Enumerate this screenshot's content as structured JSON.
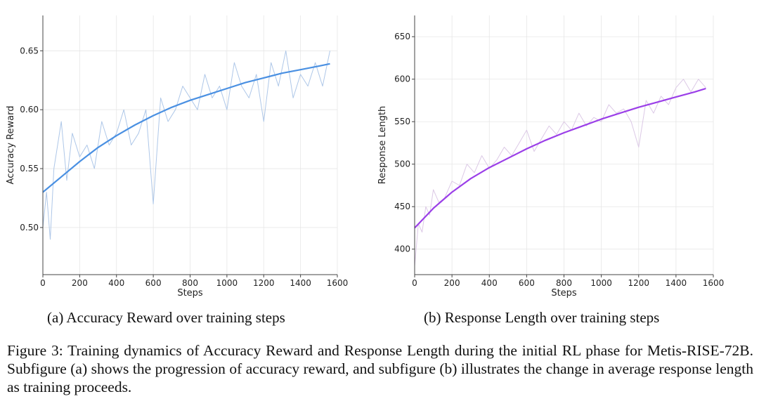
{
  "chart_data": [
    {
      "type": "line",
      "xlabel": "Steps",
      "ylabel": "Accuracy Reward",
      "xlim": [
        0,
        1600
      ],
      "ylim": [
        0.46,
        0.68
      ],
      "xticks": [
        0,
        200,
        400,
        600,
        800,
        1000,
        1200,
        1400,
        1600
      ],
      "yticks": [
        0.5,
        0.55,
        0.6,
        0.65
      ],
      "ytick_labels": [
        "0.50",
        "0.55",
        "0.60",
        "0.65"
      ],
      "grid": true,
      "series": [
        {
          "style": "raw",
          "color": "#aec7e8",
          "x": [
            0,
            20,
            40,
            60,
            80,
            100,
            130,
            160,
            200,
            240,
            280,
            320,
            360,
            400,
            440,
            480,
            520,
            560,
            600,
            640,
            680,
            720,
            760,
            800,
            840,
            880,
            920,
            960,
            1000,
            1040,
            1080,
            1120,
            1160,
            1200,
            1240,
            1280,
            1320,
            1360,
            1400,
            1440,
            1480,
            1520,
            1560
          ],
          "y": [
            0.5,
            0.53,
            0.49,
            0.55,
            0.57,
            0.59,
            0.54,
            0.58,
            0.56,
            0.57,
            0.55,
            0.59,
            0.57,
            0.58,
            0.6,
            0.57,
            0.58,
            0.6,
            0.52,
            0.61,
            0.59,
            0.6,
            0.62,
            0.61,
            0.6,
            0.63,
            0.61,
            0.62,
            0.6,
            0.64,
            0.62,
            0.61,
            0.63,
            0.59,
            0.64,
            0.62,
            0.65,
            0.61,
            0.63,
            0.62,
            0.64,
            0.62,
            0.65
          ]
        },
        {
          "style": "trend",
          "color": "#4a90e2",
          "x": [
            0,
            100,
            200,
            300,
            400,
            500,
            600,
            700,
            800,
            900,
            1000,
            1100,
            1200,
            1300,
            1400,
            1500,
            1560
          ],
          "y": [
            0.53,
            0.543,
            0.556,
            0.568,
            0.578,
            0.587,
            0.595,
            0.602,
            0.608,
            0.613,
            0.618,
            0.623,
            0.627,
            0.631,
            0.634,
            0.637,
            0.639
          ]
        }
      ]
    },
    {
      "type": "line",
      "xlabel": "Steps",
      "ylabel": "Response Length",
      "xlim": [
        0,
        1600
      ],
      "ylim": [
        370,
        675
      ],
      "xticks": [
        0,
        200,
        400,
        600,
        800,
        1000,
        1200,
        1400,
        1600
      ],
      "yticks": [
        400,
        450,
        500,
        550,
        600,
        650
      ],
      "ytick_labels": [
        "400",
        "450",
        "500",
        "550",
        "600",
        "650"
      ],
      "grid": true,
      "series": [
        {
          "style": "raw",
          "color": "#dcc9e6",
          "x": [
            0,
            20,
            40,
            60,
            80,
            100,
            130,
            160,
            200,
            240,
            280,
            320,
            360,
            400,
            440,
            480,
            520,
            560,
            600,
            640,
            680,
            720,
            760,
            800,
            840,
            880,
            920,
            960,
            1000,
            1040,
            1080,
            1120,
            1160,
            1200,
            1240,
            1280,
            1320,
            1360,
            1400,
            1440,
            1480,
            1520,
            1560
          ],
          "y": [
            380,
            430,
            420,
            450,
            440,
            470,
            455,
            460,
            480,
            475,
            500,
            490,
            510,
            495,
            505,
            520,
            510,
            525,
            540,
            515,
            530,
            545,
            535,
            550,
            540,
            560,
            545,
            555,
            550,
            570,
            560,
            565,
            550,
            520,
            575,
            560,
            580,
            570,
            590,
            600,
            585,
            600,
            590
          ]
        },
        {
          "style": "trend",
          "color": "#9b3fe8",
          "x": [
            0,
            100,
            200,
            300,
            400,
            500,
            600,
            700,
            800,
            900,
            1000,
            1100,
            1200,
            1300,
            1400,
            1500,
            1560
          ],
          "y": [
            425,
            448,
            467,
            483,
            496,
            507,
            518,
            528,
            537,
            545,
            553,
            560,
            567,
            573,
            579,
            585,
            589
          ]
        }
      ]
    }
  ],
  "captions": {
    "a": "(a) Accuracy Reward over training steps",
    "b": "(b) Response Length over training steps",
    "figure": "Figure 3: Training dynamics of Accuracy Reward and Response Length during the initial RL phase for Metis-RISE-72B. Subfigure (a) shows the progression of accuracy reward, and subfigure (b) illustrates the change in average response length as training proceeds."
  }
}
